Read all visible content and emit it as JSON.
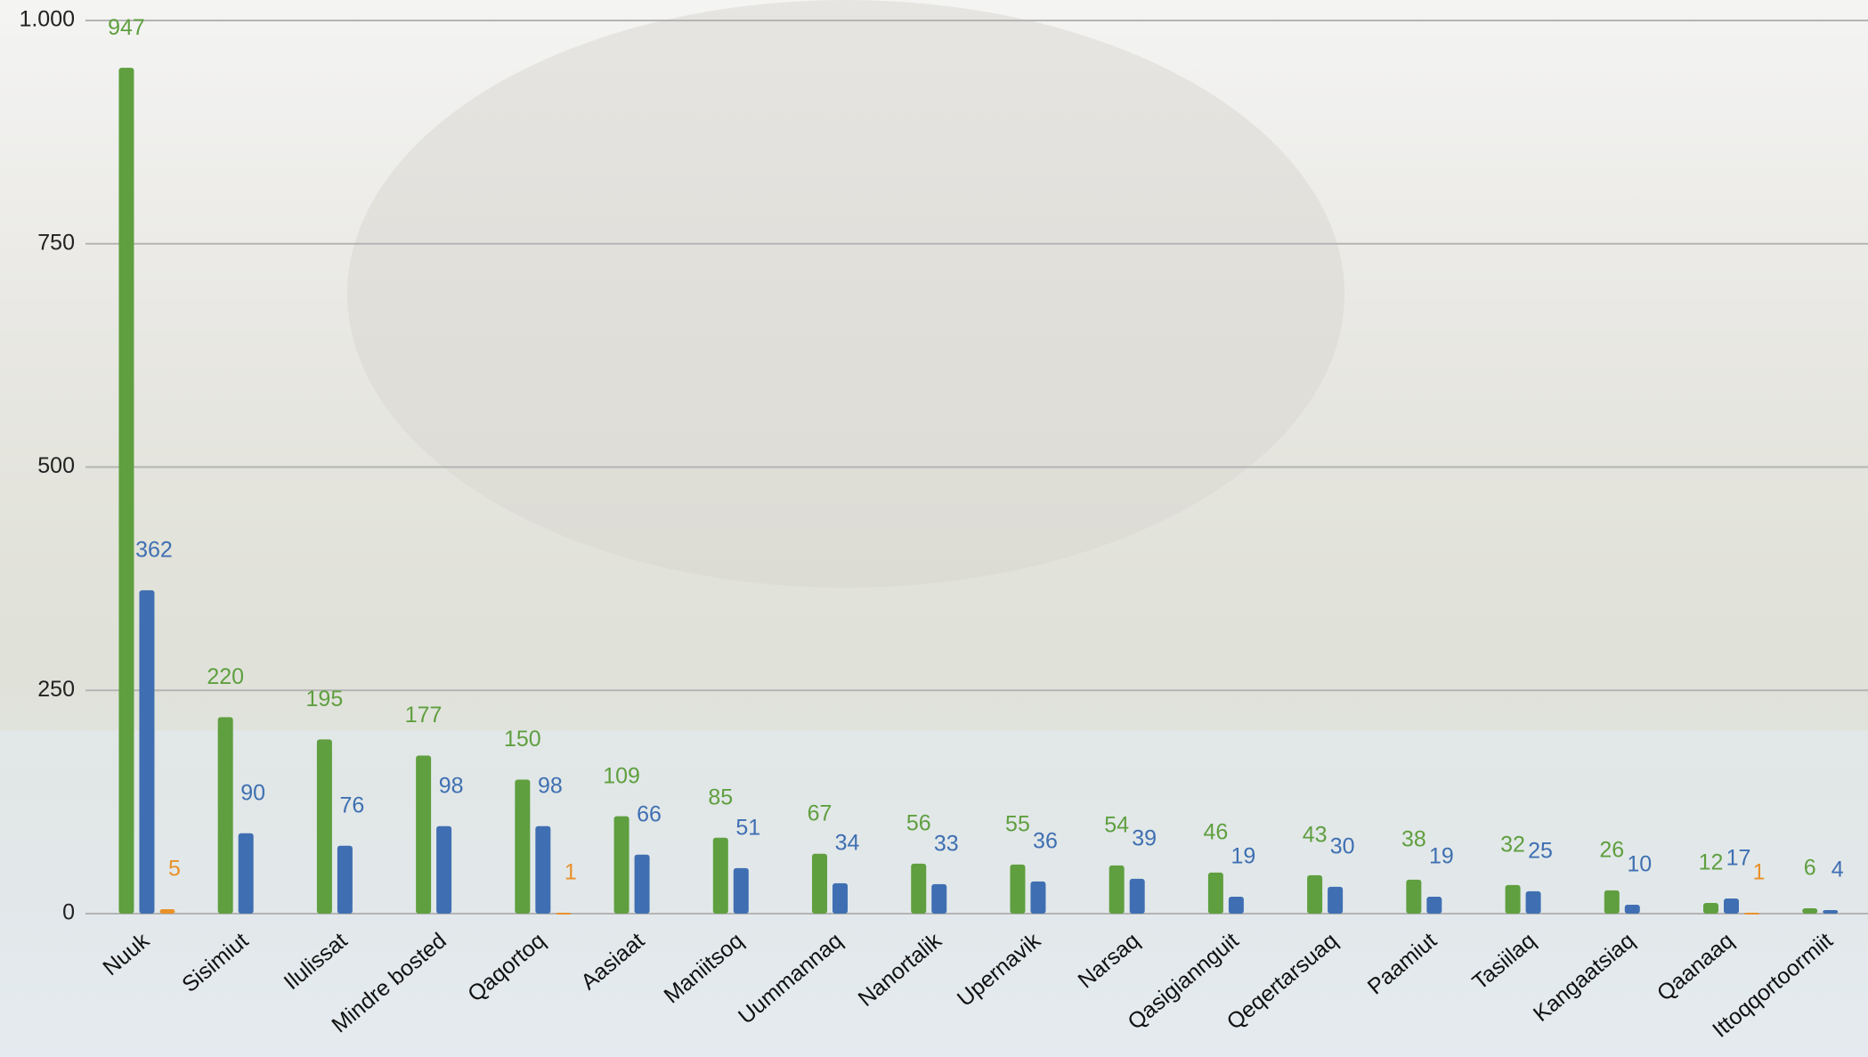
{
  "chart_data": {
    "type": "bar",
    "categories": [
      "Nuuk",
      "Sisimiut",
      "Ilulissat",
      "Mindre bosted",
      "Qaqortoq",
      "Aasiaat",
      "Maniitsoq",
      "Uummannaq",
      "Nanortalik",
      "Upernavik",
      "Narsaq",
      "Qasigiannguit",
      "Qeqertarsuaq",
      "Paamiut",
      "Tasiilaq",
      "Kangaatsiaq",
      "Qaanaaq",
      "Ittoqqortoormiit"
    ],
    "series": [
      {
        "color": "#5f9f3f",
        "values": [
          947,
          220,
          195,
          177,
          150,
          109,
          85,
          67,
          56,
          55,
          54,
          46,
          43,
          38,
          32,
          26,
          12,
          6
        ]
      },
      {
        "color": "#3f6fb2",
        "values": [
          362,
          90,
          76,
          98,
          98,
          66,
          51,
          34,
          33,
          36,
          39,
          19,
          30,
          19,
          25,
          10,
          17,
          4
        ]
      },
      {
        "color": "#e8912a",
        "values": [
          5,
          null,
          null,
          null,
          1,
          null,
          null,
          null,
          null,
          null,
          null,
          null,
          null,
          null,
          null,
          null,
          1,
          null
        ]
      }
    ],
    "ylim": [
      0,
      1000
    ],
    "yticks": [
      0,
      250,
      500,
      750,
      {
        "value": 1000,
        "label": "1.000"
      }
    ],
    "grid": true
  }
}
